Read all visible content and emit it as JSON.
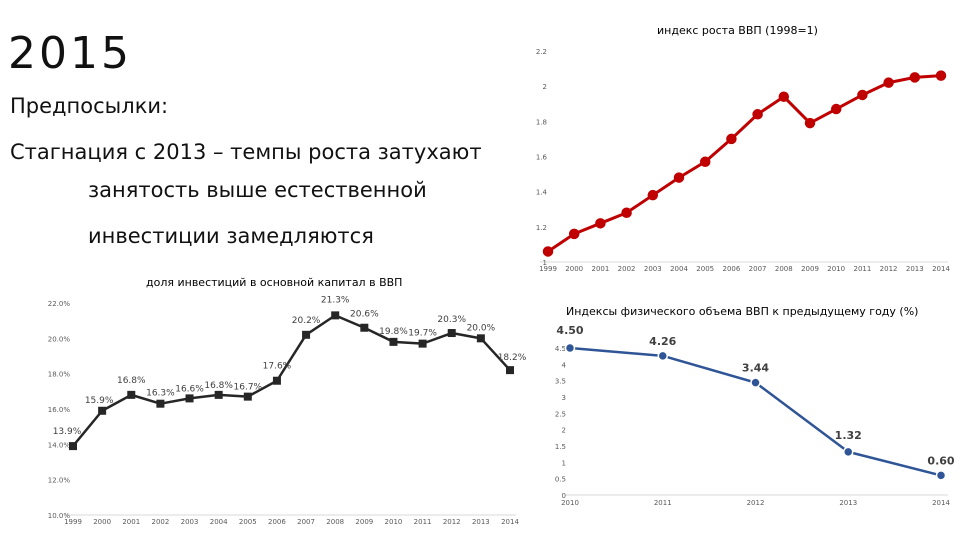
{
  "slide": {
    "title": "2015",
    "lines": [
      "Предпосылки:",
      "Стагнация с 2013 – темпы роста затухают",
      "занятость выше естественной",
      "инвестиции замедляются"
    ]
  },
  "chart_data": [
    {
      "type": "line",
      "title": "индекс роста ВВП (1998=1)",
      "xlabel": "",
      "ylabel": "",
      "categories": [
        "1999",
        "2000",
        "2001",
        "2002",
        "2003",
        "2004",
        "2005",
        "2006",
        "2007",
        "2008",
        "2009",
        "2010",
        "2011",
        "2012",
        "2013",
        "2014"
      ],
      "series": [
        {
          "values": [
            1.06,
            1.16,
            1.22,
            1.28,
            1.38,
            1.48,
            1.57,
            1.7,
            1.84,
            1.94,
            1.79,
            1.87,
            1.95,
            2.02,
            2.05,
            2.06
          ]
        }
      ],
      "yticks": [
        "1",
        "1.2",
        "1.4",
        "1.6",
        "1.8",
        "2",
        "2.2"
      ],
      "ylim": [
        1,
        2.2
      ],
      "color": "#c00000",
      "grid": false,
      "legend": "none"
    },
    {
      "type": "line",
      "title": "доля инвестиций в основной капитал в ВВП",
      "xlabel": "",
      "ylabel": "",
      "categories": [
        "1999",
        "2000",
        "2001",
        "2002",
        "2003",
        "2004",
        "2005",
        "2006",
        "2007",
        "2008",
        "2009",
        "2010",
        "2011",
        "2012",
        "2013",
        "2014"
      ],
      "series": [
        {
          "values": [
            13.9,
            15.9,
            16.8,
            16.3,
            16.6,
            16.8,
            16.7,
            17.6,
            20.2,
            21.3,
            20.6,
            19.8,
            19.7,
            20.3,
            20.0,
            18.2
          ]
        }
      ],
      "data_labels": [
        "13.9%",
        "15.9%",
        "16.8%",
        "16.3%",
        "16.6%",
        "16.8%",
        "16.7%",
        "17.6%",
        "20.2%",
        "21.3%",
        "20.6%",
        "19.8%",
        "19.7%",
        "20.3%",
        "20.0%",
        "18.2%"
      ],
      "yticks": [
        "10.0%",
        "12.0%",
        "14.0%",
        "16.0%",
        "18.0%",
        "20.0%",
        "22.0%"
      ],
      "ylim": [
        10,
        22
      ],
      "color": "#262626",
      "grid": false,
      "legend": "none"
    },
    {
      "type": "line",
      "title": "Индексы физического объема ВВП к предыдущему году (%)",
      "xlabel": "",
      "ylabel": "",
      "categories": [
        "2010",
        "2011",
        "2012",
        "2013",
        "2014"
      ],
      "series": [
        {
          "values": [
            4.5,
            4.26,
            3.44,
            1.32,
            0.6
          ]
        }
      ],
      "data_labels": [
        "4.50",
        "4.26",
        "3.44",
        "1.32",
        "0.60"
      ],
      "yticks": [
        "0",
        "0.5",
        "1",
        "1.5",
        "2",
        "2.5",
        "3",
        "3.5",
        "4",
        "4.5"
      ],
      "ylim": [
        0,
        4.5
      ],
      "color": "#2f5597",
      "grid": false,
      "legend": "none"
    }
  ]
}
